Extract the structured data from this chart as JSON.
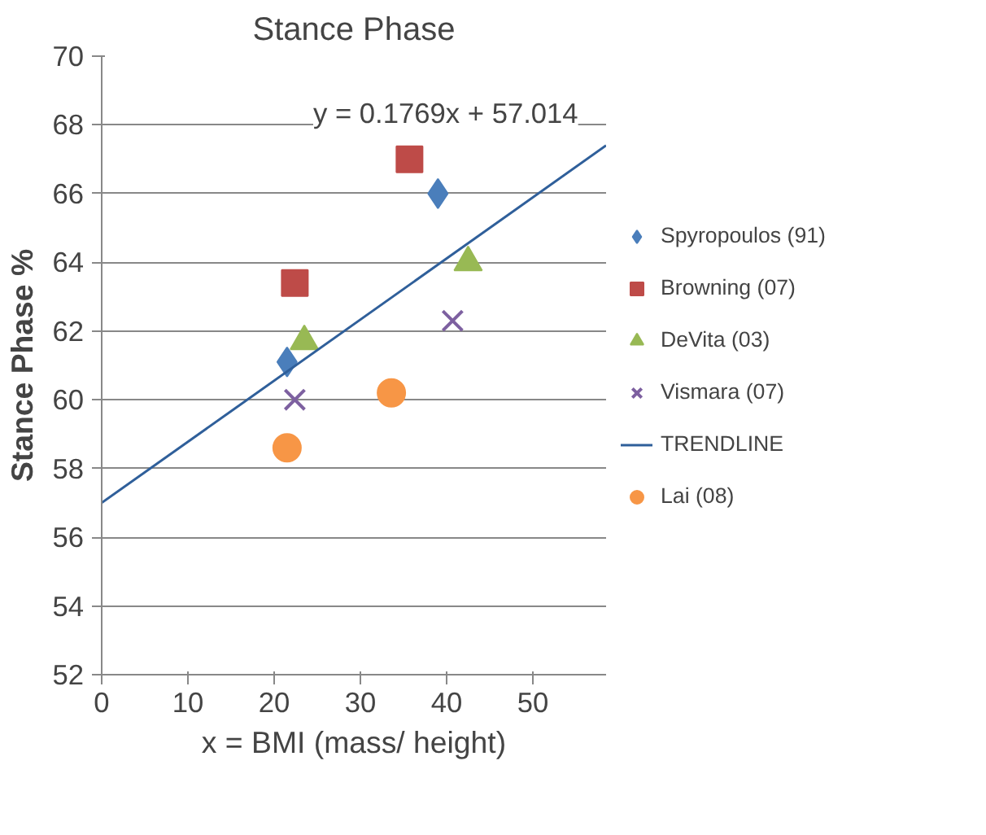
{
  "chart_data": {
    "type": "scatter",
    "title": "Stance Phase",
    "xlabel": "x = BMI (mass/ height)",
    "ylabel": "Stance Phase %",
    "xlim": [
      0,
      58.5
    ],
    "xticks": [
      0,
      10,
      20,
      30,
      40,
      50
    ],
    "ylim": [
      52,
      70
    ],
    "yticks": [
      52,
      54,
      56,
      58,
      60,
      62,
      64,
      66,
      68,
      70
    ],
    "grid": "y",
    "legend": "right",
    "annotations": [
      "y = 0.1769x + 57.014"
    ],
    "series": [
      {
        "name": "Spyropoulos (91)",
        "color": "#4a7ebb",
        "marker": "diamond",
        "x": [
          21.5,
          39.0
        ],
        "values": [
          61.1,
          66.0
        ]
      },
      {
        "name": "Browning (07)",
        "color": "#be4b48",
        "marker": "square",
        "x": [
          22.4,
          35.7
        ],
        "values": [
          63.4,
          67.0
        ]
      },
      {
        "name": "DeVita (03)",
        "color": "#98b954",
        "marker": "triangle",
        "x": [
          23.5,
          42.5
        ],
        "values": [
          61.7,
          64.0
        ]
      },
      {
        "name": "Vismara (07)",
        "color": "#7d60a0",
        "marker": "cross",
        "x": [
          22.4,
          40.7
        ],
        "values": [
          60.0,
          62.3
        ]
      },
      {
        "name": "TRENDLINE",
        "type": "line",
        "color": "#2f5f9a",
        "marker": "none",
        "x": [
          0,
          58.5
        ],
        "values": [
          57.0,
          67.4
        ]
      },
      {
        "name": "Lai (08)",
        "color": "#f79646",
        "marker": "circle",
        "x": [
          21.5,
          33.6
        ],
        "values": [
          58.6,
          60.2
        ]
      }
    ]
  }
}
